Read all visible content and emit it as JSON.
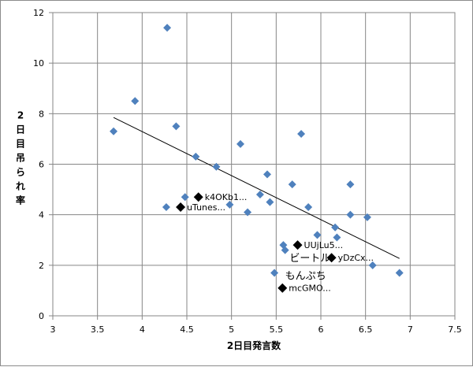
{
  "chart_data": {
    "type": "scatter",
    "title": "",
    "xlabel": "2日目発言数",
    "ylabel": "2日目吊られ率",
    "xlim": [
      3,
      7.5
    ],
    "ylim": [
      0,
      12
    ],
    "xticks": [
      3,
      3.5,
      4,
      4.5,
      5,
      5.5,
      6,
      6.5,
      7,
      7.5
    ],
    "yticks": [
      0,
      2,
      4,
      6,
      8,
      10,
      12
    ],
    "grid": true,
    "legend": "none",
    "series": [
      {
        "marker": "diamond",
        "color": "#4F81BD",
        "points": [
          {
            "x": 3.68,
            "y": 7.3
          },
          {
            "x": 3.92,
            "y": 8.5
          },
          {
            "x": 4.28,
            "y": 11.4
          },
          {
            "x": 4.27,
            "y": 4.3
          },
          {
            "x": 4.38,
            "y": 7.5
          },
          {
            "x": 4.48,
            "y": 4.7
          },
          {
            "x": 4.6,
            "y": 6.3
          },
          {
            "x": 4.83,
            "y": 5.9
          },
          {
            "x": 4.98,
            "y": 4.4
          },
          {
            "x": 5.1,
            "y": 6.8
          },
          {
            "x": 5.18,
            "y": 4.1
          },
          {
            "x": 5.32,
            "y": 4.8
          },
          {
            "x": 5.4,
            "y": 5.6
          },
          {
            "x": 5.43,
            "y": 4.5
          },
          {
            "x": 5.48,
            "y": 1.7
          },
          {
            "x": 5.58,
            "y": 2.8
          },
          {
            "x": 5.6,
            "y": 2.6
          },
          {
            "x": 5.68,
            "y": 5.2
          },
          {
            "x": 5.78,
            "y": 7.2
          },
          {
            "x": 5.86,
            "y": 4.3
          },
          {
            "x": 5.96,
            "y": 3.2
          },
          {
            "x": 6.16,
            "y": 3.5
          },
          {
            "x": 6.18,
            "y": 3.1
          },
          {
            "x": 6.33,
            "y": 5.2
          },
          {
            "x": 6.33,
            "y": 4.0
          },
          {
            "x": 6.52,
            "y": 3.9
          },
          {
            "x": 6.58,
            "y": 2.0
          },
          {
            "x": 6.88,
            "y": 1.7
          }
        ]
      },
      {
        "marker": "diamond",
        "color": "#000000",
        "points": [
          {
            "x": 4.63,
            "y": 4.7,
            "label": "k4OKb1..."
          },
          {
            "x": 4.43,
            "y": 4.3,
            "label": "uTunes..."
          },
          {
            "x": 5.74,
            "y": 2.8,
            "label": "UUjLu5..."
          },
          {
            "x": 6.12,
            "y": 2.3,
            "label": "yDzCx..."
          },
          {
            "x": 5.57,
            "y": 1.1,
            "label": "mcGMO..."
          }
        ]
      }
    ],
    "annotations": [
      {
        "text": "ビートル",
        "x": 5.65,
        "y": 2.3
      },
      {
        "text": "もんぷち",
        "x": 5.6,
        "y": 1.6
      }
    ],
    "trendline": {
      "type": "linear",
      "x": [
        3.68,
        6.88
      ],
      "y": [
        7.85,
        2.27
      ],
      "color": "#000000"
    }
  }
}
